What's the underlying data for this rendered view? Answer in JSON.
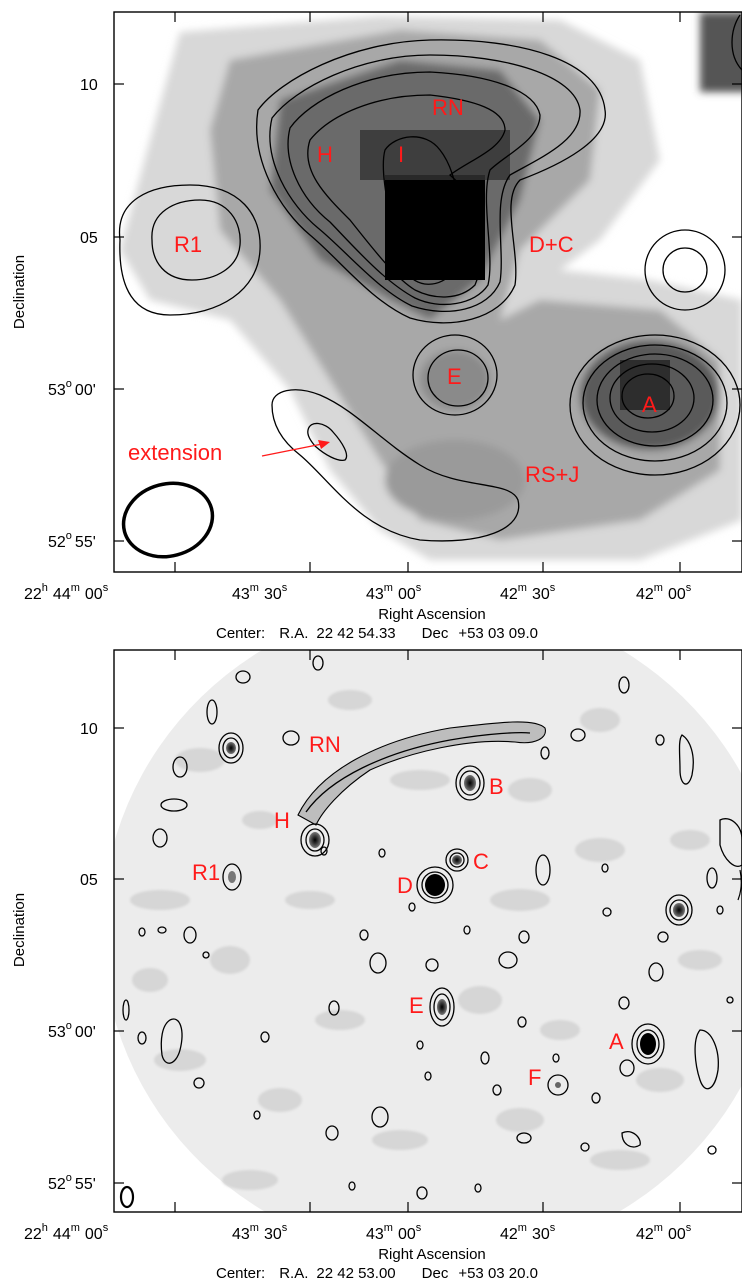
{
  "panels": [
    {
      "id": "top",
      "x_tick_labels": [
        {
          "h": "22",
          "hu": "h",
          "m": "44",
          "mu": "m",
          "s": "00",
          "su": "s"
        },
        {
          "m": "43",
          "mu": "m",
          "s": "30",
          "su": "s"
        },
        {
          "m": "43",
          "mu": "m",
          "s": "00",
          "su": "s"
        },
        {
          "m": "42",
          "mu": "m",
          "s": "30",
          "su": "s"
        },
        {
          "m": "42",
          "mu": "m",
          "s": "00",
          "su": "s"
        }
      ],
      "y_tick_labels": [
        {
          "text": "10"
        },
        {
          "text": "05"
        },
        {
          "deg": "53",
          "du": "o",
          "min": "00'"
        },
        {
          "deg": "52",
          "du": "o",
          "min": "55'"
        }
      ],
      "xlabel": "Right Ascension",
      "ylabel": "Declination",
      "center": {
        "label": "Center:",
        "ra_label": "R.A.",
        "ra": "22 42 54.33",
        "dec_label": "Dec",
        "dec": "+53 03 09.0"
      },
      "sources": [
        "RN",
        "H",
        "I",
        "R1",
        "D+C",
        "E",
        "A",
        "RS+J"
      ],
      "annotation": "extension"
    },
    {
      "id": "bottom",
      "x_tick_labels": [
        {
          "h": "22",
          "hu": "h",
          "m": "44",
          "mu": "m",
          "s": "00",
          "su": "s"
        },
        {
          "m": "43",
          "mu": "m",
          "s": "30",
          "su": "s"
        },
        {
          "m": "43",
          "mu": "m",
          "s": "00",
          "su": "s"
        },
        {
          "m": "42",
          "mu": "m",
          "s": "30",
          "su": "s"
        },
        {
          "m": "42",
          "mu": "m",
          "s": "00",
          "su": "s"
        }
      ],
      "y_tick_labels": [
        {
          "text": "10"
        },
        {
          "text": "05"
        },
        {
          "deg": "53",
          "du": "o",
          "min": "00'"
        },
        {
          "deg": "52",
          "du": "o",
          "min": "55'"
        }
      ],
      "xlabel": "Right Ascension",
      "ylabel": "Declination",
      "center": {
        "label": "Center:",
        "ra_label": "R.A.",
        "ra": "22 42 53.00",
        "dec_label": "Dec",
        "dec": "+53 03 20.0"
      },
      "sources": [
        "RN",
        "B",
        "H",
        "C",
        "R1",
        "D",
        "E",
        "A",
        "F"
      ]
    }
  ],
  "colors": {
    "label": "#ff1a1a",
    "contour": "#000000",
    "frame": "#000000"
  }
}
